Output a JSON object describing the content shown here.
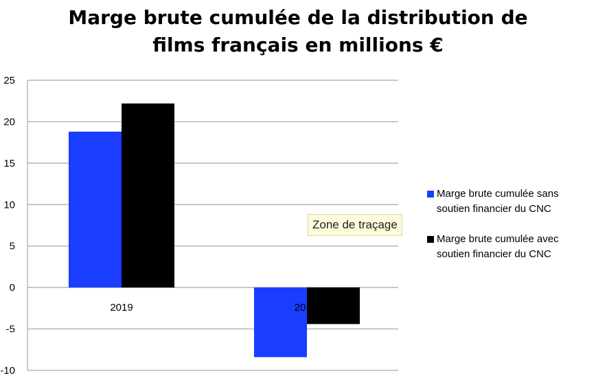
{
  "chart_data": {
    "type": "bar",
    "title": "Marge brute cumulée de la distribution de films français en millions €",
    "title_lines": [
      "Marge brute cumulée de la distribution de",
      "films français en millions €"
    ],
    "categories": [
      "2019",
      "20"
    ],
    "series": [
      {
        "name": "Marge brute cumulée sans soutien financier du CNC",
        "name_lines": [
          "Marge brute cumulée sans",
          "soutien financier du CNC"
        ],
        "color": "#1a3dff",
        "values": [
          18.8,
          -8.4
        ]
      },
      {
        "name": "Marge brute cumulée avec soutien financier du CNC",
        "name_lines": [
          "Marge brute cumulée avec",
          "soutien financier du CNC"
        ],
        "color": "#000000",
        "values": [
          22.2,
          -4.4
        ]
      }
    ],
    "yticks": [
      "25",
      "20",
      "15",
      "10",
      "5",
      "0",
      "-5",
      "-10"
    ],
    "ylim": [
      -10,
      25
    ],
    "xlabel": "",
    "ylabel": "",
    "grid": true,
    "legend_position": "right"
  },
  "tooltip": {
    "label": "Zone de traçage"
  }
}
